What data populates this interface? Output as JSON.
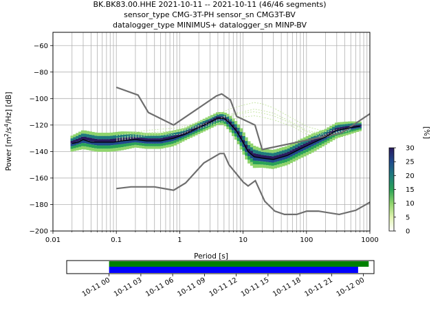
{
  "title_lines": [
    "BK.BK83.00.HHE   2021-10-11 -- 2021-10-11  (46/46 segments)",
    "sensor_type CMG-3T-PH sensor_sn CMG3T-BV",
    "datalogger_type MINIMUS+ datalogger_sn MINP-BV"
  ],
  "chart_data": [
    {
      "type": "line",
      "xscale": "log",
      "xlim": [
        0.01,
        1000
      ],
      "ylim": [
        -200,
        -50
      ],
      "xlabel": "Period [s]",
      "ylabel": "Power [m^2/s^4/Hz] [dB]",
      "xticks": [
        {
          "v": 0.01,
          "label": "0.01"
        },
        {
          "v": 0.1,
          "label": "0.1"
        },
        {
          "v": 1,
          "label": "1"
        },
        {
          "v": 10,
          "label": "10"
        },
        {
          "v": 100,
          "label": "100"
        },
        {
          "v": 1000,
          "label": "1000"
        }
      ],
      "yticks": [
        -200,
        -180,
        -160,
        -140,
        -120,
        -100,
        -80,
        -60
      ],
      "grid": true,
      "series": [
        {
          "role": "noise-model-high",
          "color": "#6e6e6e",
          "x": [
            0.1,
            0.22,
            0.32,
            0.8,
            3.8,
            4.6,
            6.3,
            7.9,
            15.4,
            20,
            354.8,
            1000
          ],
          "y": [
            -91.5,
            -97.4,
            -110.5,
            -120,
            -98,
            -96.5,
            -101,
            -113.5,
            -120,
            -138.5,
            -126,
            -111.5
          ]
        },
        {
          "role": "noise-model-low",
          "color": "#6e6e6e",
          "x": [
            0.1,
            0.17,
            0.4,
            0.8,
            1.24,
            2.4,
            4.3,
            5,
            6,
            10,
            12,
            15.6,
            21.9,
            31.6,
            45,
            70,
            101,
            154,
            328,
            600,
            1000
          ],
          "y": [
            -168,
            -166.7,
            -166.7,
            -169.2,
            -163.7,
            -148.6,
            -141.5,
            -141.5,
            -150,
            -163,
            -166,
            -162,
            -177.5,
            -185,
            -187.5,
            -187.5,
            -185,
            -185,
            -187.5,
            -184.4,
            -178.3
          ]
        },
        {
          "role": "mode",
          "color": "#000000",
          "x": [
            0.02,
            0.025,
            0.03,
            0.04,
            0.06,
            0.09,
            0.12,
            0.2,
            0.3,
            0.5,
            0.8,
            1.2,
            2,
            3,
            4,
            5,
            6,
            8,
            10,
            12,
            15,
            20,
            30,
            50,
            80,
            120,
            200,
            300,
            500,
            700
          ],
          "y": [
            -134,
            -133,
            -131,
            -133,
            -133,
            -133,
            -132,
            -131,
            -132,
            -132,
            -130,
            -127,
            -122,
            -118,
            -115,
            -115,
            -118,
            -125,
            -133,
            -140,
            -144,
            -145,
            -146,
            -143,
            -138,
            -134,
            -129,
            -124,
            -122,
            -121
          ]
        }
      ],
      "ppsd_density": {
        "colormap": "pqlx-green",
        "comment": "probabilistic density of individual PSD estimates, sampled along period",
        "x": [
          0.02,
          0.03,
          0.05,
          0.08,
          0.12,
          0.2,
          0.3,
          0.5,
          0.8,
          1.2,
          2,
          3,
          4,
          5,
          6,
          8,
          10,
          12,
          15,
          20,
          30,
          50,
          80,
          120,
          200,
          300,
          500,
          700
        ],
        "center": [
          -134,
          -131,
          -133,
          -133,
          -132,
          -131,
          -132,
          -132,
          -130,
          -127,
          -122,
          -118,
          -115,
          -115,
          -118,
          -125,
          -133,
          -140,
          -144,
          -145,
          -146,
          -143,
          -138,
          -134,
          -129,
          -124,
          -122,
          -121
        ],
        "spread": [
          5,
          6,
          6,
          6,
          6,
          5,
          5,
          5,
          5,
          4,
          4,
          4,
          4,
          4,
          5,
          6,
          7,
          7,
          7,
          6,
          6,
          6,
          6,
          6,
          5,
          5,
          4,
          3
        ]
      },
      "pale_psd_traces": {
        "color": "#c8e6a8",
        "x": [
          0.1,
          0.3,
          1,
          3,
          6,
          10,
          15,
          20,
          30,
          60,
          100,
          200,
          500
        ],
        "traces": [
          [
            -128,
            -124,
            -122,
            -115,
            -108,
            -105,
            -103,
            -104,
            -107,
            -115,
            -121,
            -125,
            -122
          ],
          [
            -130,
            -126,
            -124,
            -118,
            -112,
            -110,
            -108,
            -109,
            -111,
            -118,
            -124,
            -127,
            -123
          ],
          [
            -132,
            -128,
            -127,
            -120,
            -116,
            -114,
            -113,
            -114,
            -116,
            -121,
            -127,
            -129,
            -124
          ],
          [
            -131,
            -127,
            -125,
            -119,
            -113,
            -111,
            -110,
            -111,
            -113,
            -119,
            -125,
            -128,
            -123
          ]
        ]
      }
    },
    {
      "type": "colorbar",
      "label": "[%]",
      "range": [
        0,
        30
      ],
      "ticks": [
        0,
        5,
        10,
        15,
        20,
        25,
        30
      ],
      "colors": [
        "#ffffff",
        "#e0f3b0",
        "#8fd46c",
        "#2aa257",
        "#1f7b7d",
        "#1f4a8c",
        "#2a1a5e"
      ]
    },
    {
      "type": "timeline",
      "xlim": [
        "2021-10-10 20:00",
        "2021-10-12 01:00"
      ],
      "xticks": [
        "10-11 00",
        "10-11 03",
        "10-11 06",
        "10-11 09",
        "10-11 12",
        "10-11 15",
        "10-11 18",
        "10-11 21",
        "10-12 00"
      ],
      "bars": [
        {
          "role": "data-available",
          "color": "#008000",
          "start": "2021-10-11 00:00",
          "end": "2021-10-12 00:30"
        },
        {
          "role": "psd-segments",
          "color": "#0000ff",
          "start": "2021-10-11 00:00",
          "end": "2021-10-11 23:30"
        }
      ]
    }
  ]
}
